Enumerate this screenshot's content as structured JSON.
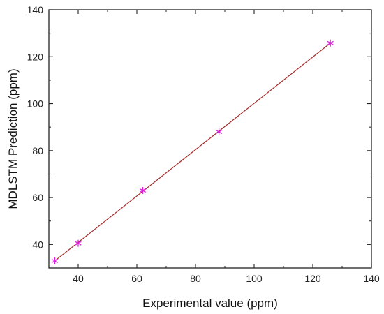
{
  "chart_data": {
    "type": "scatter",
    "xlabel": "Experimental value (ppm)",
    "ylabel": "MDLSTM Prediction (ppm)",
    "xlim": [
      30,
      140
    ],
    "ylim": [
      30,
      140
    ],
    "x_ticks": [
      40,
      60,
      80,
      100,
      120,
      140
    ],
    "y_ticks": [
      40,
      60,
      80,
      100,
      120,
      140
    ],
    "grid": false,
    "legend": "none",
    "series": [
      {
        "kind": "points",
        "marker": "asterisk",
        "color": "#e020e0",
        "x": [
          32.0,
          40.0,
          62.0,
          88.0,
          126.0
        ],
        "y": [
          33.0,
          40.5,
          63.0,
          88.0,
          125.8
        ]
      },
      {
        "kind": "fit-line",
        "color": "#a52a2a",
        "x": [
          32.0,
          126.0
        ],
        "y": [
          33.0,
          125.8
        ]
      }
    ]
  }
}
